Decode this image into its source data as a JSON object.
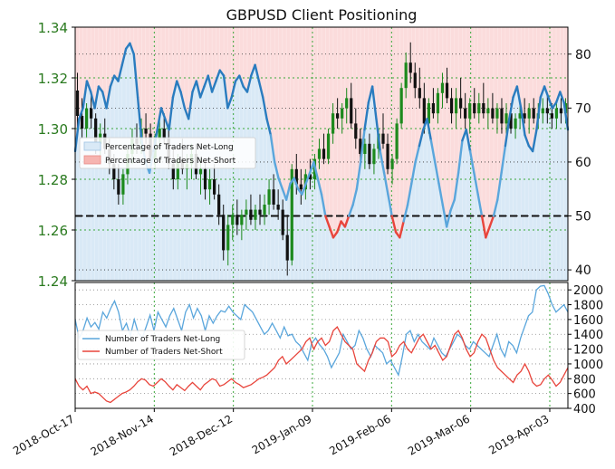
{
  "title": "GBPUSD Client Positioning",
  "colors": {
    "price_axis": "#2a7a1f",
    "candle_up": "#1d8a1d",
    "candle_down": "#111111",
    "long_line": "#2a7cbf",
    "long_line_light": "#5aa6dc",
    "short_line": "#e8453c",
    "long_fill": "#d9e9f6",
    "short_fill": "#fbdcdc",
    "grid": "#3aa83a",
    "grid_lower": "#888888",
    "band": "#111111"
  },
  "chart_data": [
    {
      "type": "candlestick+line",
      "title": "GBPUSD Client Positioning",
      "x_tick_labels": [
        "2018-Oct-17",
        "2018-Nov-14",
        "2018-Dec-12",
        "2019-Jan-09",
        "2019-Feb-06",
        "2019-Mar-06",
        "2019-Apr-03"
      ],
      "price_axis": {
        "ylim": [
          1.24,
          1.34
        ],
        "ticks": [
          "1.24",
          "1.26",
          "1.28",
          "1.30",
          "1.32",
          "1.34"
        ]
      },
      "pct_axis": {
        "ylim": [
          38,
          85
        ],
        "ticks": [
          "40",
          "50",
          "60",
          "70",
          "80"
        ]
      },
      "reference_line": 50,
      "legend": [
        "Percentage of Traders Net-Long",
        "Percentage of Traders Net-Short"
      ],
      "pct_net_long": [
        62,
        68,
        70,
        75,
        73,
        70,
        74,
        73,
        70,
        74,
        76,
        75,
        78,
        81,
        82,
        80,
        72,
        64,
        60,
        58,
        62,
        66,
        70,
        68,
        66,
        72,
        75,
        73,
        70,
        68,
        73,
        75,
        72,
        74,
        76,
        73,
        75,
        77,
        76,
        70,
        72,
        75,
        76,
        74,
        73,
        76,
        78,
        75,
        72,
        68,
        65,
        60,
        57,
        55,
        53,
        56,
        57,
        55,
        54,
        56,
        58,
        60,
        57,
        54,
        50,
        48,
        46,
        47,
        49,
        48,
        50,
        52,
        55,
        60,
        66,
        71,
        74,
        68,
        62,
        58,
        54,
        50,
        47,
        46,
        49,
        52,
        56,
        60,
        63,
        66,
        68,
        64,
        60,
        56,
        52,
        48,
        51,
        53,
        58,
        64,
        66,
        62,
        58,
        54,
        50,
        46,
        48,
        50,
        53,
        58,
        63,
        68,
        72,
        74,
        70,
        65,
        63,
        62,
        66,
        72,
        74,
        72,
        70,
        71,
        73,
        71,
        66
      ],
      "candles": [
        [
          1.315,
          1.322,
          1.3,
          1.305
        ],
        [
          1.305,
          1.312,
          1.296,
          1.3
        ],
        [
          1.3,
          1.31,
          1.296,
          1.308
        ],
        [
          1.308,
          1.314,
          1.3,
          1.304
        ],
        [
          1.304,
          1.306,
          1.29,
          1.294
        ],
        [
          1.294,
          1.302,
          1.288,
          1.298
        ],
        [
          1.298,
          1.304,
          1.29,
          1.292
        ],
        [
          1.292,
          1.296,
          1.282,
          1.286
        ],
        [
          1.286,
          1.29,
          1.276,
          1.28
        ],
        [
          1.28,
          1.286,
          1.27,
          1.274
        ],
        [
          1.274,
          1.284,
          1.27,
          1.282
        ],
        [
          1.282,
          1.292,
          1.278,
          1.29
        ],
        [
          1.29,
          1.3,
          1.286,
          1.296
        ],
        [
          1.296,
          1.302,
          1.29,
          1.294
        ],
        [
          1.294,
          1.304,
          1.29,
          1.3
        ],
        [
          1.3,
          1.306,
          1.294,
          1.298
        ],
        [
          1.298,
          1.302,
          1.286,
          1.288
        ],
        [
          1.288,
          1.298,
          1.284,
          1.296
        ],
        [
          1.296,
          1.304,
          1.292,
          1.3
        ],
        [
          1.3,
          1.306,
          1.294,
          1.296
        ],
        [
          1.296,
          1.3,
          1.284,
          1.286
        ],
        [
          1.286,
          1.292,
          1.276,
          1.28
        ],
        [
          1.28,
          1.29,
          1.276,
          1.288
        ],
        [
          1.288,
          1.296,
          1.282,
          1.284
        ],
        [
          1.284,
          1.29,
          1.276,
          1.286
        ],
        [
          1.286,
          1.294,
          1.28,
          1.29
        ],
        [
          1.29,
          1.294,
          1.28,
          1.282
        ],
        [
          1.282,
          1.288,
          1.274,
          1.284
        ],
        [
          1.284,
          1.288,
          1.272,
          1.276
        ],
        [
          1.276,
          1.284,
          1.27,
          1.28
        ],
        [
          1.28,
          1.286,
          1.272,
          1.274
        ],
        [
          1.274,
          1.278,
          1.262,
          1.266
        ],
        [
          1.266,
          1.27,
          1.248,
          1.252
        ],
        [
          1.252,
          1.266,
          1.246,
          1.262
        ],
        [
          1.262,
          1.27,
          1.256,
          1.266
        ],
        [
          1.266,
          1.272,
          1.258,
          1.262
        ],
        [
          1.262,
          1.268,
          1.256,
          1.266
        ],
        [
          1.266,
          1.272,
          1.26,
          1.268
        ],
        [
          1.268,
          1.274,
          1.262,
          1.264
        ],
        [
          1.264,
          1.27,
          1.26,
          1.268
        ],
        [
          1.268,
          1.274,
          1.262,
          1.266
        ],
        [
          1.266,
          1.274,
          1.262,
          1.27
        ],
        [
          1.27,
          1.28,
          1.266,
          1.276
        ],
        [
          1.276,
          1.282,
          1.268,
          1.27
        ],
        [
          1.27,
          1.276,
          1.264,
          1.268
        ],
        [
          1.268,
          1.272,
          1.256,
          1.258
        ],
        [
          1.258,
          1.266,
          1.242,
          1.248
        ],
        [
          1.248,
          1.286,
          1.246,
          1.284
        ],
        [
          1.284,
          1.29,
          1.274,
          1.278
        ],
        [
          1.278,
          1.284,
          1.27,
          1.276
        ],
        [
          1.276,
          1.284,
          1.272,
          1.282
        ],
        [
          1.282,
          1.288,
          1.276,
          1.28
        ],
        [
          1.28,
          1.29,
          1.276,
          1.288
        ],
        [
          1.288,
          1.296,
          1.284,
          1.292
        ],
        [
          1.292,
          1.298,
          1.286,
          1.288
        ],
        [
          1.288,
          1.3,
          1.286,
          1.298
        ],
        [
          1.298,
          1.31,
          1.294,
          1.306
        ],
        [
          1.306,
          1.312,
          1.3,
          1.304
        ],
        [
          1.304,
          1.31,
          1.298,
          1.308
        ],
        [
          1.308,
          1.316,
          1.302,
          1.312
        ],
        [
          1.312,
          1.318,
          1.3,
          1.302
        ],
        [
          1.302,
          1.308,
          1.292,
          1.296
        ],
        [
          1.296,
          1.3,
          1.286,
          1.29
        ],
        [
          1.29,
          1.296,
          1.284,
          1.294
        ],
        [
          1.294,
          1.298,
          1.284,
          1.286
        ],
        [
          1.286,
          1.294,
          1.282,
          1.292
        ],
        [
          1.292,
          1.3,
          1.288,
          1.298
        ],
        [
          1.298,
          1.306,
          1.292,
          1.294
        ],
        [
          1.294,
          1.298,
          1.282,
          1.284
        ],
        [
          1.284,
          1.29,
          1.278,
          1.288
        ],
        [
          1.288,
          1.304,
          1.286,
          1.302
        ],
        [
          1.302,
          1.318,
          1.3,
          1.316
        ],
        [
          1.316,
          1.33,
          1.312,
          1.326
        ],
        [
          1.326,
          1.334,
          1.318,
          1.322
        ],
        [
          1.322,
          1.326,
          1.312,
          1.316
        ],
        [
          1.316,
          1.324,
          1.308,
          1.312
        ],
        [
          1.312,
          1.318,
          1.298,
          1.302
        ],
        [
          1.302,
          1.312,
          1.298,
          1.31
        ],
        [
          1.31,
          1.316,
          1.304,
          1.306
        ],
        [
          1.306,
          1.316,
          1.302,
          1.314
        ],
        [
          1.314,
          1.322,
          1.308,
          1.318
        ],
        [
          1.318,
          1.324,
          1.31,
          1.312
        ],
        [
          1.312,
          1.316,
          1.302,
          1.306
        ],
        [
          1.306,
          1.316,
          1.3,
          1.312
        ],
        [
          1.312,
          1.32,
          1.304,
          1.308
        ],
        [
          1.308,
          1.314,
          1.3,
          1.304
        ],
        [
          1.304,
          1.312,
          1.298,
          1.31
        ],
        [
          1.31,
          1.316,
          1.304,
          1.306
        ],
        [
          1.306,
          1.314,
          1.302,
          1.31
        ],
        [
          1.31,
          1.318,
          1.304,
          1.306
        ],
        [
          1.306,
          1.312,
          1.3,
          1.308
        ],
        [
          1.308,
          1.314,
          1.302,
          1.304
        ],
        [
          1.304,
          1.31,
          1.298,
          1.308
        ],
        [
          1.308,
          1.312,
          1.298,
          1.302
        ],
        [
          1.302,
          1.31,
          1.298,
          1.306
        ],
        [
          1.306,
          1.31,
          1.298,
          1.3
        ],
        [
          1.3,
          1.306,
          1.296,
          1.304
        ],
        [
          1.304,
          1.31,
          1.3,
          1.306
        ],
        [
          1.306,
          1.312,
          1.302,
          1.304
        ],
        [
          1.304,
          1.31,
          1.298,
          1.308
        ],
        [
          1.308,
          1.312,
          1.302,
          1.304
        ],
        [
          1.304,
          1.31,
          1.3,
          1.306
        ],
        [
          1.306,
          1.312,
          1.302,
          1.308
        ],
        [
          1.308,
          1.314,
          1.302,
          1.306
        ],
        [
          1.306,
          1.31,
          1.3,
          1.304
        ],
        [
          1.304,
          1.31,
          1.3,
          1.308
        ],
        [
          1.308,
          1.312,
          1.302,
          1.306
        ],
        [
          1.306,
          1.312,
          1.302,
          1.31
        ]
      ]
    },
    {
      "type": "line",
      "ylim": [
        400,
        2100
      ],
      "y_ticks": [
        "400",
        "600",
        "800",
        "1000",
        "1200",
        "1400",
        "1600",
        "1800",
        "2000"
      ],
      "legend": [
        "Number of Traders Net-Long",
        "Number of Traders Net-Short"
      ],
      "series": [
        {
          "name": "Number of Traders Net-Long",
          "values": [
            1600,
            1350,
            1450,
            1620,
            1500,
            1560,
            1470,
            1700,
            1620,
            1750,
            1850,
            1700,
            1450,
            1550,
            1380,
            1600,
            1420,
            1350,
            1500,
            1660,
            1450,
            1700,
            1600,
            1500,
            1650,
            1750,
            1600,
            1450,
            1700,
            1800,
            1620,
            1750,
            1650,
            1450,
            1650,
            1550,
            1650,
            1720,
            1700,
            1780,
            1700,
            1650,
            1600,
            1800,
            1750,
            1700,
            1600,
            1500,
            1400,
            1450,
            1550,
            1450,
            1350,
            1500,
            1380,
            1400,
            1300,
            1250,
            1150,
            1050,
            1280,
            1350,
            1260,
            1200,
            1100,
            950,
            1050,
            1150,
            1400,
            1300,
            1200,
            1250,
            1450,
            1350,
            1200,
            1100,
            1250,
            1200,
            1150,
            1000,
            1050,
            950,
            850,
            1100,
            1400,
            1450,
            1300,
            1400,
            1300,
            1250,
            1200,
            1350,
            1250,
            1150,
            1100,
            1200,
            1300,
            1400,
            1350,
            1250,
            1200,
            1300,
            1250,
            1200,
            1150,
            1100,
            1250,
            1400,
            1200,
            1100,
            1300,
            1250,
            1150,
            1350,
            1500,
            1650,
            1700,
            2000,
            2050,
            2060,
            1950,
            1800,
            1700,
            1750,
            1800,
            1700
          ]
        },
        {
          "name": "Number of Traders Net-Short",
          "values": [
            800,
            700,
            650,
            700,
            600,
            620,
            600,
            550,
            500,
            480,
            520,
            560,
            600,
            620,
            650,
            700,
            760,
            800,
            780,
            720,
            700,
            750,
            800,
            760,
            700,
            650,
            720,
            680,
            640,
            700,
            750,
            700,
            650,
            720,
            760,
            800,
            780,
            700,
            720,
            760,
            800,
            750,
            720,
            680,
            700,
            720,
            760,
            800,
            820,
            850,
            900,
            950,
            1050,
            1100,
            1000,
            1050,
            1100,
            1150,
            1200,
            1300,
            1350,
            1200,
            1300,
            1350,
            1250,
            1300,
            1450,
            1500,
            1400,
            1300,
            1250,
            1200,
            1000,
            950,
            900,
            1050,
            1150,
            1300,
            1350,
            1350,
            1300,
            1100,
            1150,
            1250,
            1300,
            1200,
            1150,
            1250,
            1350,
            1400,
            1300,
            1200,
            1250,
            1150,
            1050,
            1100,
            1250,
            1400,
            1450,
            1350,
            1200,
            1100,
            1150,
            1300,
            1400,
            1350,
            1200,
            1050,
            950,
            900,
            850,
            800,
            750,
            850,
            900,
            1000,
            900,
            750,
            700,
            720,
            800,
            850,
            780,
            700,
            750,
            850,
            950
          ]
        }
      ]
    }
  ]
}
